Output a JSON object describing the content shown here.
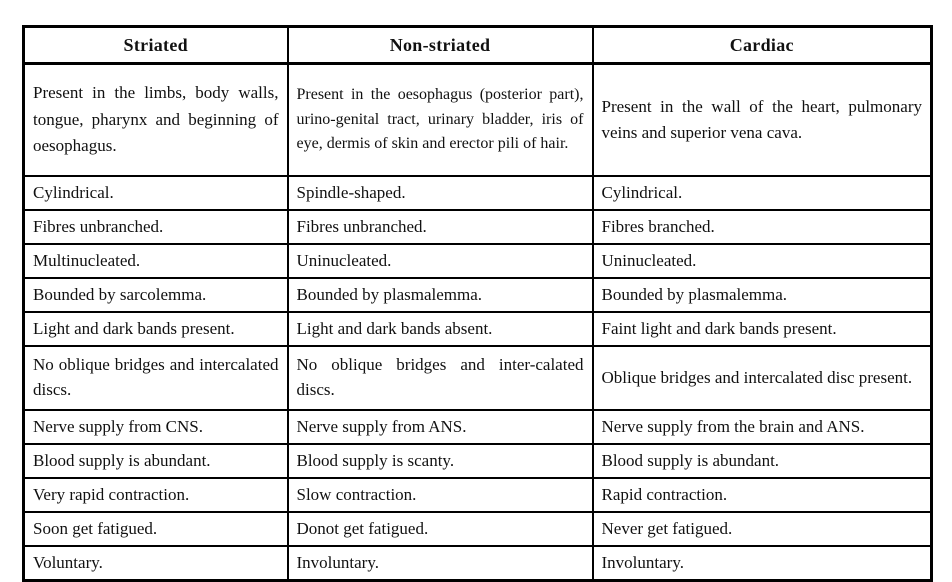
{
  "colors": {
    "border": "#000000",
    "background": "#ffffff",
    "text": "#111111"
  },
  "table": {
    "headers": [
      "Striated",
      "Non-striated",
      "Cardiac"
    ],
    "rows": [
      [
        "Present in the limbs, body walls, tongue, pharynx and beginning of oesophagus.",
        "Present in the oesophagus (posterior part), urino-genital tract, urinary bladder, iris of eye, dermis of skin and erector pili of hair.",
        "Present in the wall of the heart, pulmonary veins and superior vena cava."
      ],
      [
        "Cylindrical.",
        "Spindle-shaped.",
        "Cylindrical."
      ],
      [
        "Fibres unbranched.",
        "Fibres unbranched.",
        "Fibres branched."
      ],
      [
        "Multinucleated.",
        "Uninucleated.",
        "Uninucleated."
      ],
      [
        "Bounded by sarcolemma.",
        "Bounded by plasmalemma.",
        "Bounded by plasmalemma."
      ],
      [
        "Light and dark bands present.",
        "Light and dark bands absent.",
        "Faint light and dark bands present."
      ],
      [
        "No oblique bridges and intercalated discs.",
        "No oblique bridges and inter-calated discs.",
        "Oblique bridges and intercalated disc present."
      ],
      [
        "Nerve supply from CNS.",
        "Nerve supply from ANS.",
        "Nerve supply from the brain and ANS."
      ],
      [
        "Blood supply is abundant.",
        "Blood supply is scanty.",
        "Blood supply is abundant."
      ],
      [
        "Very rapid contraction.",
        "Slow contraction.",
        "Rapid contraction."
      ],
      [
        "Soon get fatigued.",
        "Donot get fatigued.",
        "Never get fatigued."
      ],
      [
        "Voluntary.",
        "Involuntary.",
        "Involuntary."
      ]
    ]
  }
}
